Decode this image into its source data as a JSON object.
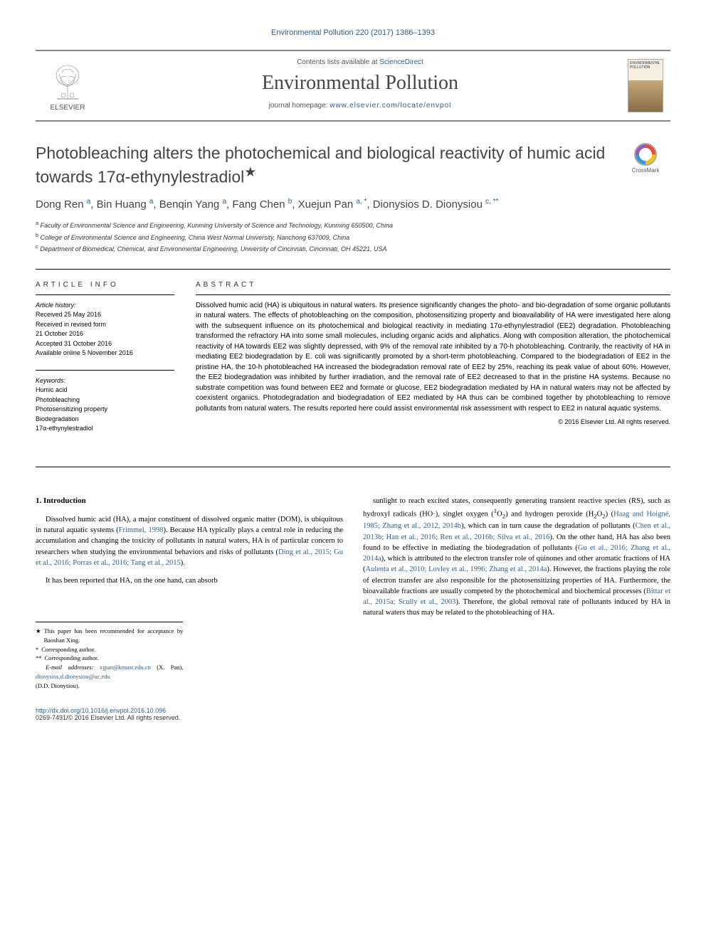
{
  "topbar": "Environmental Pollution 220 (2017) 1386–1393",
  "header": {
    "contents_prefix": "Contents lists available at ",
    "contents_link": "ScienceDirect",
    "journal": "Environmental Pollution",
    "homepage_prefix": "journal homepage: ",
    "homepage_link": "www.elsevier.com/locate/envpol",
    "publisher": "ELSEVIER",
    "cover_label": "ENVIRONMENTAL POLLUTION"
  },
  "title": "Photobleaching alters the photochemical and biological reactivity of humic acid towards 17α-ethynylestradiol",
  "crossmark": "CrossMark",
  "authors_html": "Dong Ren <sup>a</sup>, Bin Huang <sup>a</sup>, Benqin Yang <sup>a</sup>, Fang Chen <sup>b</sup>, Xuejun Pan <sup>a, <span class='corr'>*</span></sup>, Dionysios D. Dionysiou <sup>c, <span class='corr'>**</span></sup>",
  "affiliations": [
    "<sup>a</sup> Faculty of Environmental Science and Engineering, Kunming University of Science and Technology, Kunming 650500, China",
    "<sup>b</sup> College of Environmental Science and Engineering, China West Normal University, Nanchong 637009, China",
    "<sup>c</sup> Department of Biomedical, Chemical, and Environmental Engineering, University of Cincinnati, Cincinnati, OH 45221, USA"
  ],
  "info": {
    "heading": "ARTICLE INFO",
    "history_label": "Article history:",
    "history": [
      "Received 25 May 2016",
      "Received in revised form",
      "21 October 2016",
      "Accepted 31 October 2016",
      "Available online 5 November 2016"
    ],
    "keywords_label": "Keywords:",
    "keywords": [
      "Humic acid",
      "Photobleaching",
      "Photosensitizing property",
      "Biodegradation",
      "17α-ethynylestradiol"
    ]
  },
  "abstract": {
    "heading": "ABSTRACT",
    "text": "Dissolved humic acid (HA) is ubiquitous in natural waters. Its presence significantly changes the photo- and bio-degradation of some organic pollutants in natural waters. The effects of photobleaching on the composition, photosensitizing property and bioavailability of HA were investigated here along with the subsequent influence on its photochemical and biological reactivity in mediating 17α-ethynylestradiol (EE2) degradation. Photobleaching transformed the refractory HA into some small molecules, including organic acids and aliphatics. Along with composition alteration, the photochemical reactivity of HA towards EE2 was slightly depressed, with 9% of the removal rate inhibited by a 70-h photobleaching. Contrarily, the reactivity of HA in mediating EE2 biodegradation by E. coli was significantly promoted by a short-term photobleaching. Compared to the biodegradation of EE2 in the pristine HA, the 10-h photobleached HA increased the biodegradation removal rate of EE2 by 25%, reaching its peak value of about 60%. However, the EE2 biodegradation was inhibited by further irradiation, and the removal rate of EE2 decreased to that in the pristine HA systems. Because no substrate competition was found between EE2 and formate or glucose, EE2 biodegradation mediated by HA in natural waters may not be affected by coexistent organics. Photodegradation and biodegradation of EE2 mediated by HA thus can be combined together by photobleaching to remove pollutants from natural waters. The results reported here could assist environmental risk assessment with respect to EE2 in natural aquatic systems.",
    "copyright": "© 2016 Elsevier Ltd. All rights reserved."
  },
  "body": {
    "section": "1. Introduction",
    "col1": [
      "Dissolved humic acid (HA), a major constituent of dissolved organic matter (DOM), is ubiquitous in natural aquatic systems (<span class='ref-link'>Frimmel, 1998</span>). Because HA typically plays a central role in reducing the accumulation and changing the toxicity of pollutants in natural waters, HA is of particular concern to researchers when studying the environmental behaviors and risks of pollutants (<span class='ref-link'>Ding et al., 2015; Gu et al., 2016; Porras et al., 2016; Tang et al., 2015</span>).",
      "It has been reported that HA, on the one hand, can absorb"
    ],
    "col2": [
      "sunlight to reach excited states, consequently generating transient reactive species (RS), such as hydroxyl radicals (HO·), singlet oxygen (<sup>1</sup>O<sub>2</sub>) and hydrogen peroxide (H<sub>2</sub>O<sub>2</sub>) (<span class='ref-link'>Haag and Hoigné, 1985; Zhang et al., 2012, 2014b</span>), which can in turn cause the degradation of pollutants (<span class='ref-link'>Chen et al., 2013b; Han et al., 2016; Ren et al., 2016b; Silva et al., 2016</span>). On the other hand, HA has also been found to be effective in mediating the biodegradation of pollutants (<span class='ref-link'>Gu et al., 2016; Zhang et al., 2014a</span>), which is attributed to the electron transfer role of quinones and other aromatic fractions of HA (<span class='ref-link'>Aulenta et al., 2010; Lovley et al., 1996; Zhang et al., 2014a</span>). However, the fractions playing the role of electron transfer are also responsible for the photosensitizing properties of HA. Furthermore, the bioavailable fractions are usually competed by the photochemical and biochemical processes (<span class='ref-link'>Bittar et al., 2015a; Scully et al., 2003</span>). Therefore, the global removal rate of pollutants induced by HA in natural waters thus may be related to the photobleaching of HA."
    ]
  },
  "footnotes": {
    "rec": "This paper has been recommended for acceptance by Baoshan Xing.",
    "corr1": "Corresponding author.",
    "corr2": "Corresponding author.",
    "email_label": "E-mail addresses:",
    "email1": "xjpan@kmust.edu.cn",
    "email1_who": "(X. Pan),",
    "email2": "dionysios.d.dionysiou@uc.edu",
    "email2_who": "(D.D. Dionysiou)."
  },
  "doi": "http://dx.doi.org/10.1016/j.envpol.2016.10.096",
  "issn": "0269-7491/© 2016 Elsevier Ltd. All rights reserved.",
  "colors": {
    "link": "#2e5c8a",
    "text": "#000000",
    "heading": "#444444",
    "rule": "#888888"
  }
}
